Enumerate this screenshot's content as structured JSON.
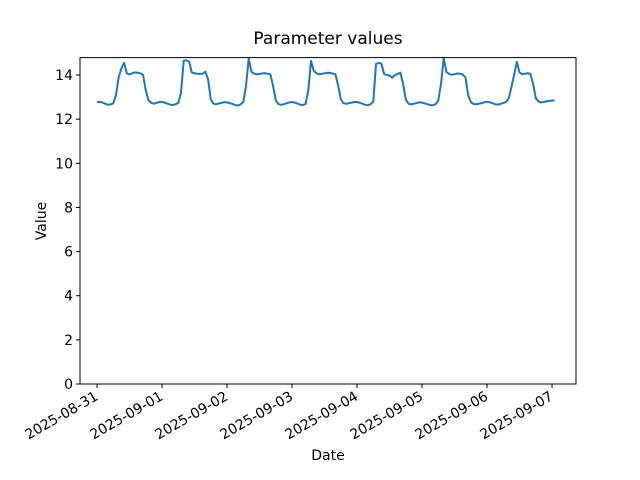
{
  "figure": {
    "title": "Parameter values",
    "xlabel": "Date",
    "ylabel": "Value",
    "background_color": "#ffffff",
    "axis_color": "#000000"
  },
  "chart_data": {
    "type": "line",
    "title": "Parameter values",
    "xlabel": "Date",
    "ylabel": "Value",
    "grid": false,
    "legend": "none",
    "x_tick_labels": [
      "2025-08-31",
      "2025-09-01",
      "2025-09-02",
      "2025-09-03",
      "2025-09-04",
      "2025-09-05",
      "2025-09-06",
      "2025-09-07"
    ],
    "x_tick_rotation_deg": 30,
    "y_ticks": [
      0,
      2,
      4,
      6,
      8,
      10,
      12,
      14
    ],
    "ylim": [
      0,
      14.79
    ],
    "xlim_days_relative_to_first_tick": [
      -0.262,
      7.369
    ],
    "x_start": "2025-08-31 00:00",
    "x_interval_hours": 1,
    "series": [
      {
        "name": "parameter",
        "color": "#1f77b4",
        "line_width": 2,
        "values": [
          12.78,
          12.78,
          12.76,
          12.7,
          12.65,
          12.67,
          12.72,
          13.1,
          13.9,
          14.3,
          14.55,
          14.08,
          14.03,
          14.08,
          14.12,
          14.1,
          14.08,
          14.0,
          13.3,
          12.85,
          12.74,
          12.7,
          12.74,
          12.78,
          12.78,
          12.75,
          12.7,
          12.66,
          12.64,
          12.68,
          12.74,
          13.2,
          14.65,
          14.67,
          14.6,
          14.12,
          14.08,
          14.06,
          14.05,
          14.06,
          14.15,
          13.8,
          12.9,
          12.7,
          12.68,
          12.71,
          12.74,
          12.77,
          12.76,
          12.73,
          12.69,
          12.64,
          12.62,
          12.67,
          12.78,
          13.5,
          14.75,
          14.15,
          14.06,
          14.04,
          14.05,
          14.07,
          14.08,
          14.06,
          14.03,
          13.5,
          12.85,
          12.68,
          12.65,
          12.68,
          12.72,
          12.76,
          12.78,
          12.75,
          12.71,
          12.66,
          12.64,
          12.69,
          13.3,
          14.65,
          14.2,
          14.08,
          14.04,
          14.05,
          14.08,
          14.1,
          14.09,
          14.07,
          14.04,
          13.55,
          12.9,
          12.72,
          12.7,
          12.72,
          12.75,
          12.78,
          12.78,
          12.74,
          12.7,
          12.65,
          12.63,
          12.68,
          12.8,
          14.5,
          14.55,
          14.52,
          14.05,
          14.0,
          13.98,
          13.88,
          14.0,
          14.05,
          14.1,
          13.6,
          12.9,
          12.7,
          12.67,
          12.7,
          12.73,
          12.77,
          12.75,
          12.72,
          12.68,
          12.64,
          12.63,
          12.68,
          12.85,
          13.6,
          14.76,
          14.14,
          14.05,
          14.01,
          14.04,
          14.07,
          14.06,
          14.03,
          13.9,
          13.1,
          12.78,
          12.69,
          12.67,
          12.7,
          12.73,
          12.76,
          12.79,
          12.76,
          12.73,
          12.68,
          12.66,
          12.69,
          12.73,
          12.78,
          12.95,
          13.45,
          14.0,
          14.6,
          14.12,
          14.04,
          14.06,
          14.08,
          14.06,
          13.6,
          12.95,
          12.8,
          12.76,
          12.78,
          12.81,
          12.83,
          12.84,
          12.85
        ]
      }
    ]
  }
}
